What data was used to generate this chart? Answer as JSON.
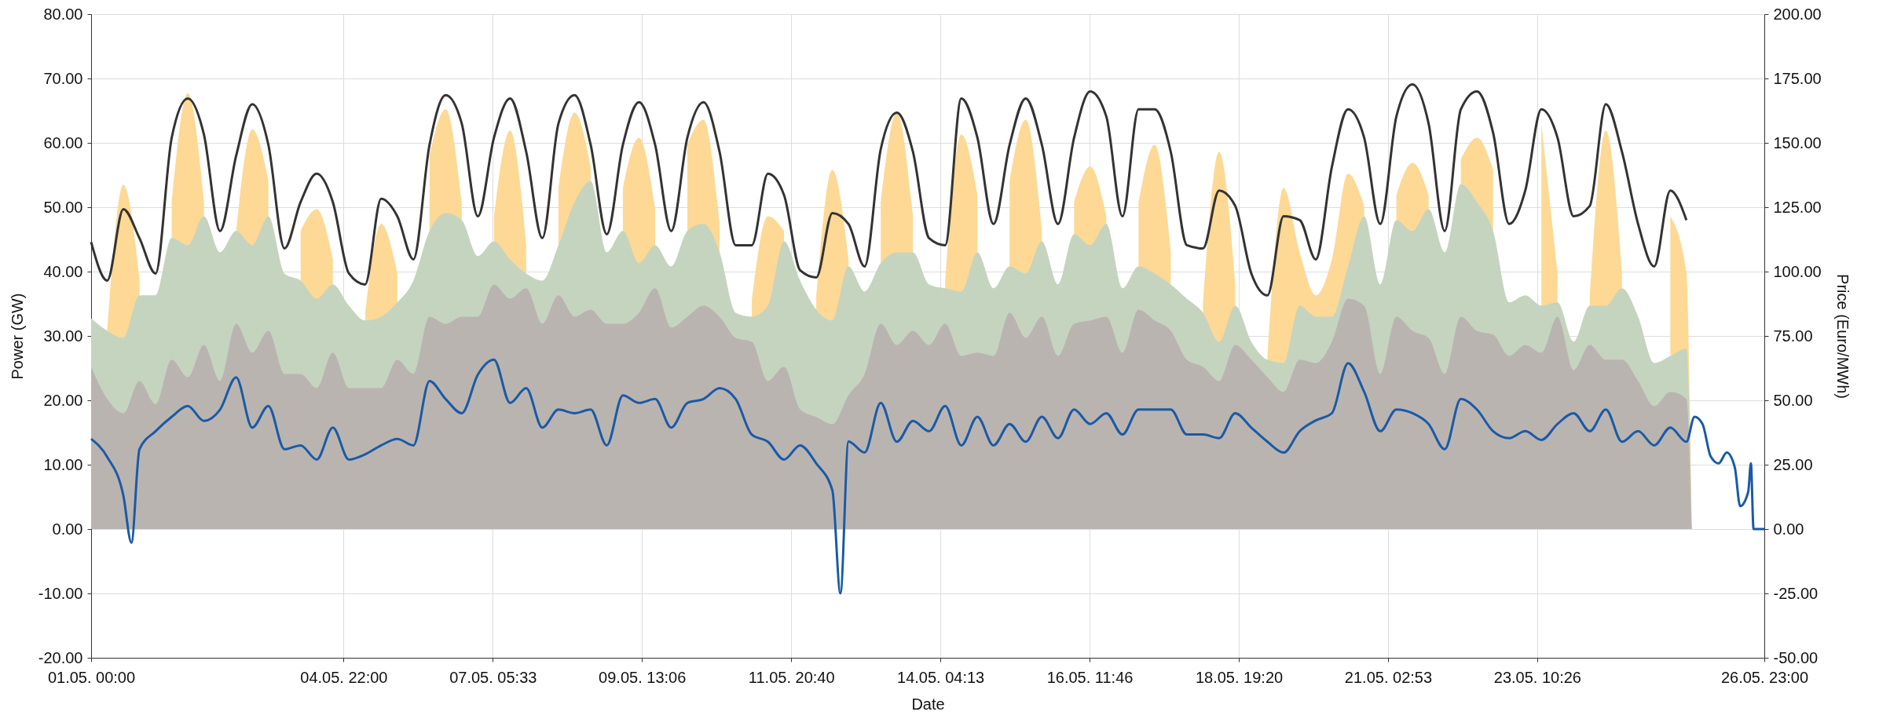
{
  "chart_data": {
    "type": "area",
    "xlabel": "Date",
    "ylabel": "Power (GW)",
    "y2label": "Price (Euro/MWh)",
    "grid": true,
    "xlim": [
      "--05-01T00:00",
      "--05-26T23:00"
    ],
    "xticks": [
      {
        "value": "--05-01T00:00",
        "label": "01.05. 00:00"
      },
      {
        "value": "--05-04T22:00",
        "label": "04.05. 22:00"
      },
      {
        "value": "--05-07T05:33",
        "label": "07.05. 05:33"
      },
      {
        "value": "--05-09T13:06",
        "label": "09.05. 13:06"
      },
      {
        "value": "--05-11T20:40",
        "label": "11.05. 20:40"
      },
      {
        "value": "--05-14T04:13",
        "label": "14.05. 04:13"
      },
      {
        "value": "--05-16T11:46",
        "label": "16.05. 11:46"
      },
      {
        "value": "--05-18T19:20",
        "label": "18.05. 19:20"
      },
      {
        "value": "--05-21T02:53",
        "label": "21.05. 02:53"
      },
      {
        "value": "--05-23T10:26",
        "label": "23.05. 10:26"
      },
      {
        "value": "--05-26T23:00",
        "label": "26.05. 23:00"
      }
    ],
    "ylim": [
      -20,
      80
    ],
    "yticks": [
      {
        "value": -20,
        "label": "-20.00"
      },
      {
        "value": -10,
        "label": "-10.00"
      },
      {
        "value": 0,
        "label": "0.00"
      },
      {
        "value": 10,
        "label": "10.00"
      },
      {
        "value": 20,
        "label": "20.00"
      },
      {
        "value": 30,
        "label": "30.00"
      },
      {
        "value": 40,
        "label": "40.00"
      },
      {
        "value": 50,
        "label": "50.00"
      },
      {
        "value": 60,
        "label": "60.00"
      },
      {
        "value": 70,
        "label": "70.00"
      },
      {
        "value": 80,
        "label": "80.00"
      }
    ],
    "y2lim": [
      -50,
      200
    ],
    "y2ticks": [
      {
        "value": -50,
        "label": "-50.00"
      },
      {
        "value": -25,
        "label": "-25.00"
      },
      {
        "value": 0,
        "label": "0.00"
      },
      {
        "value": 25,
        "label": "25.00"
      },
      {
        "value": 50,
        "label": "50.00"
      },
      {
        "value": 75,
        "label": "75.00"
      },
      {
        "value": 100,
        "label": "100.00"
      },
      {
        "value": 125,
        "label": "125.00"
      },
      {
        "value": 150,
        "label": "150.00"
      },
      {
        "value": 175,
        "label": "175.00"
      },
      {
        "value": 200,
        "label": "200.00"
      }
    ],
    "x": [
      "--05-01T00:00",
      "--05-01T06:00",
      "--05-01T12:00",
      "--05-01T18:00",
      "--05-02T00:00",
      "--05-02T06:00",
      "--05-02T12:00",
      "--05-02T18:00",
      "--05-03T00:00",
      "--05-03T06:00",
      "--05-03T12:00",
      "--05-03T18:00",
      "--05-04T00:00",
      "--05-04T06:00",
      "--05-04T12:00",
      "--05-04T18:00",
      "--05-05T00:00",
      "--05-05T06:00",
      "--05-05T12:00",
      "--05-05T18:00",
      "--05-06T00:00",
      "--05-06T06:00",
      "--05-06T12:00",
      "--05-06T18:00",
      "--05-07T00:00",
      "--05-07T06:00",
      "--05-07T12:00",
      "--05-07T18:00",
      "--05-08T00:00",
      "--05-08T06:00",
      "--05-08T12:00",
      "--05-08T18:00",
      "--05-09T00:00",
      "--05-09T06:00",
      "--05-09T12:00",
      "--05-09T18:00",
      "--05-10T00:00",
      "--05-10T06:00",
      "--05-10T12:00",
      "--05-10T18:00",
      "--05-11T00:00",
      "--05-11T06:00",
      "--05-11T12:00",
      "--05-11T18:00",
      "--05-12T00:00",
      "--05-12T06:00",
      "--05-12T12:00",
      "--05-12T18:00",
      "--05-13T00:00",
      "--05-13T06:00",
      "--05-13T12:00",
      "--05-13T18:00",
      "--05-14T00:00",
      "--05-14T06:00",
      "--05-14T12:00",
      "--05-14T18:00",
      "--05-15T00:00",
      "--05-15T06:00",
      "--05-15T12:00",
      "--05-15T18:00",
      "--05-16T00:00",
      "--05-16T06:00",
      "--05-16T12:00",
      "--05-16T18:00",
      "--05-17T00:00",
      "--05-17T06:00",
      "--05-17T12:00",
      "--05-17T18:00",
      "--05-18T00:00",
      "--05-18T06:00",
      "--05-18T12:00",
      "--05-18T18:00",
      "--05-19T00:00",
      "--05-19T06:00",
      "--05-19T12:00",
      "--05-19T18:00",
      "--05-20T00:00",
      "--05-20T06:00",
      "--05-20T12:00",
      "--05-20T18:00",
      "--05-21T00:00",
      "--05-21T06:00",
      "--05-21T12:00",
      "--05-21T18:00",
      "--05-22T00:00",
      "--05-22T06:00",
      "--05-22T12:00",
      "--05-22T18:00",
      "--05-23T00:00",
      "--05-23T06:00",
      "--05-23T12:00",
      "--05-23T18:00",
      "--05-24T00:00",
      "--05-24T06:00",
      "--05-24T12:00",
      "--05-24T18:00",
      "--05-25T00:00",
      "--05-25T06:00",
      "--05-25T12:00",
      "--05-25T18:00",
      "--05-25T20:00"
    ],
    "series": [
      {
        "color": "#fdd995",
        "values": [
          null,
          31,
          53.5,
          39,
          null,
          50.8,
          67.7,
          50.8,
          null,
          46.3,
          62.1,
          54.1,
          null,
          46.3,
          49.7,
          41.9,
          null,
          33,
          47.4,
          39.7,
          null,
          58,
          65.2,
          50.8,
          null,
          48.6,
          61.9,
          44.1,
          null,
          53,
          64.7,
          56.3,
          null,
          53,
          60.8,
          49.7,
          null,
          59.7,
          63.6,
          47.4,
          null,
          35.2,
          48.6,
          46.3,
          null,
          36.3,
          55.8,
          41.9,
          null,
          50.8,
          64.7,
          48.6,
          null,
          38.6,
          61.3,
          51.9,
          null,
          54.1,
          63.6,
          46.3,
          null,
          50.8,
          56.3,
          48.6,
          null,
          50.8,
          59.7,
          43,
          null,
          35.2,
          58.6,
          38,
          null,
          26.9,
          53,
          43,
          36.3,
          41.9,
          55.2,
          50.2,
          null,
          51.9,
          56.9,
          51.9,
          null,
          57.4,
          60.8,
          55.8,
          null,
          null,
          63,
          39.7,
          null,
          36.3,
          61.9,
          39.7,
          null,
          null,
          48.6,
          39.7,
          0
        ]
      },
      {
        "color": "#c5d4bf",
        "values": [
          32.7,
          30.8,
          29.7,
          36.3,
          36.3,
          45.2,
          44.1,
          48.6,
          43,
          46.3,
          44.1,
          48.6,
          39.7,
          38.6,
          35.8,
          38,
          34.7,
          32.4,
          33,
          35.2,
          38.6,
          46.3,
          49.1,
          48,
          42.4,
          44.7,
          41.9,
          39.7,
          38.6,
          44.1,
          50.8,
          54.1,
          43,
          46.3,
          41.3,
          44.1,
          40.8,
          46.3,
          47.4,
          43,
          33.6,
          33,
          34.7,
          44.7,
          38.6,
          34.1,
          32.4,
          40.8,
          36.9,
          41.3,
          43,
          43,
          38,
          37.4,
          36.9,
          43,
          37.4,
          40.8,
          39.7,
          44.7,
          38,
          45.8,
          44.1,
          47.4,
          37.4,
          40.8,
          39.7,
          38,
          35.8,
          33.6,
          29.1,
          34.7,
          29.1,
          26.3,
          25.8,
          34.7,
          33,
          33,
          40.8,
          48.6,
          38,
          48,
          46.3,
          49.7,
          43,
          53.6,
          50.8,
          46.3,
          35.2,
          36.3,
          34.7,
          35.2,
          29.1,
          34.7,
          34.7,
          37.4,
          33,
          25.8,
          26.9,
          28,
          0
        ]
      },
      {
        "color": "#bab4b1",
        "values": [
          25.2,
          20.2,
          18,
          23,
          19.4,
          26.3,
          23.6,
          28.6,
          23,
          31.9,
          27.4,
          30.8,
          24.1,
          24.1,
          21.9,
          27.4,
          21.9,
          21.9,
          21.9,
          26.3,
          24.1,
          33,
          31.9,
          33,
          33,
          38,
          35.8,
          37.4,
          31.9,
          36.3,
          33,
          34.1,
          31.9,
          31.9,
          33.6,
          37.4,
          31.3,
          33,
          34.7,
          33,
          29.7,
          29.1,
          23,
          25.2,
          18.6,
          17.4,
          16.3,
          20.8,
          24.1,
          31.9,
          28.6,
          30.8,
          28.6,
          31.9,
          26.9,
          27.4,
          26.9,
          33.6,
          29.7,
          33,
          26.9,
          31.9,
          32.4,
          33,
          27.4,
          34.1,
          32.4,
          30.8,
          26.3,
          25.2,
          23,
          28.6,
          26.3,
          23.6,
          21.3,
          26.3,
          25.8,
          29.1,
          35.8,
          34.7,
          24.1,
          33,
          30.8,
          29.7,
          24.1,
          33,
          30.8,
          30.2,
          26.9,
          28.6,
          27.4,
          33,
          24.7,
          28.6,
          26.3,
          26.3,
          23,
          19.1,
          21.3,
          20.2,
          0
        ]
      },
      {
        "type": "line",
        "color": "#333333",
        "values": [
          44.6,
          38.6,
          49.7,
          45.2,
          39.7,
          60.8,
          66.9,
          61.3,
          46.3,
          58,
          66,
          59.7,
          43.6,
          50.8,
          55.2,
          50.8,
          39.7,
          38,
          51.3,
          48.6,
          41.9,
          59.7,
          67.4,
          63,
          48.6,
          60.8,
          66.9,
          58.6,
          45.2,
          63,
          67.4,
          59.7,
          45.8,
          59.7,
          66.3,
          59.7,
          46.3,
          60.8,
          66.3,
          58.6,
          44.1,
          44.1,
          55.2,
          51.9,
          40.2,
          39.1,
          49.1,
          47.4,
          40.8,
          59,
          64.7,
          58.6,
          45.2,
          44.1,
          66.9,
          60.8,
          47.4,
          59.7,
          66.9,
          59.7,
          47.4,
          60.8,
          68,
          64.1,
          48.6,
          65.2,
          65.2,
          58.6,
          44.1,
          43.6,
          52.6,
          50.2,
          39.7,
          36.3,
          48.6,
          48,
          41.9,
          56.3,
          65.2,
          60.8,
          47.4,
          64.1,
          69.1,
          63,
          46.3,
          65.2,
          68,
          61.6,
          47.4,
          52.6,
          65.2,
          60.8,
          48.6,
          50.2,
          66,
          58.6,
          47.4,
          40.8,
          52.6,
          48,
          null
        ]
      },
      {
        "type": "line",
        "axis": "y2",
        "color": "#1a5aa6",
        "x": [
          "--05-01T00:00",
          "--05-01T06:00",
          "--05-01T12:00",
          "--05-01T15:00",
          "--05-01T18:00",
          "--05-02T00:00",
          "--05-02T06:00",
          "--05-02T12:00",
          "--05-02T18:00",
          "--05-03T00:00",
          "--05-03T06:00",
          "--05-03T12:00",
          "--05-03T18:00",
          "--05-04T00:00",
          "--05-04T06:00",
          "--05-04T12:00",
          "--05-04T18:00",
          "--05-05T00:00",
          "--05-05T06:00",
          "--05-05T12:00",
          "--05-05T18:00",
          "--05-06T00:00",
          "--05-06T06:00",
          "--05-06T12:00",
          "--05-06T18:00",
          "--05-07T00:00",
          "--05-07T06:00",
          "--05-07T12:00",
          "--05-07T18:00",
          "--05-08T00:00",
          "--05-08T06:00",
          "--05-08T12:00",
          "--05-08T18:00",
          "--05-09T00:00",
          "--05-09T06:00",
          "--05-09T12:00",
          "--05-09T18:00",
          "--05-10T00:00",
          "--05-10T06:00",
          "--05-10T12:00",
          "--05-10T18:00",
          "--05-11T00:00",
          "--05-11T06:00",
          "--05-11T12:00",
          "--05-11T18:00",
          "--05-12T00:00",
          "--05-12T06:00",
          "--05-12T12:00",
          "--05-12T15:00",
          "--05-12T18:00",
          "--05-13T00:00",
          "--05-13T06:00",
          "--05-13T12:00",
          "--05-13T18:00",
          "--05-14T00:00",
          "--05-14T06:00",
          "--05-14T12:00",
          "--05-14T18:00",
          "--05-15T00:00",
          "--05-15T06:00",
          "--05-15T12:00",
          "--05-15T18:00",
          "--05-16T00:00",
          "--05-16T06:00",
          "--05-16T12:00",
          "--05-16T18:00",
          "--05-17T00:00",
          "--05-17T06:00",
          "--05-17T12:00",
          "--05-17T18:00",
          "--05-18T00:00",
          "--05-18T06:00",
          "--05-18T12:00",
          "--05-18T18:00",
          "--05-19T00:00",
          "--05-19T06:00",
          "--05-19T12:00",
          "--05-19T18:00",
          "--05-20T00:00",
          "--05-20T06:00",
          "--05-20T12:00",
          "--05-20T18:00",
          "--05-21T00:00",
          "--05-21T06:00",
          "--05-21T12:00",
          "--05-21T18:00",
          "--05-22T00:00",
          "--05-22T06:00",
          "--05-22T12:00",
          "--05-22T18:00",
          "--05-23T00:00",
          "--05-23T06:00",
          "--05-23T12:00",
          "--05-23T18:00",
          "--05-24T00:00",
          "--05-24T06:00",
          "--05-24T12:00",
          "--05-24T18:00",
          "--05-25T00:00",
          "--05-25T06:00",
          "--05-25T12:00",
          "--05-25T18:00",
          "--05-25T21:00",
          "--05-26T00:00",
          "--05-26T03:00",
          "--05-26T06:00",
          "--05-26T09:00",
          "--05-26T12:00",
          "--05-26T14:00",
          "--05-26T17:00",
          "--05-26T18:00",
          "--05-26T19:00",
          "--05-26T23:00"
        ],
        "values": [
          35,
          28,
          13,
          -5.3,
          31,
          38,
          43.6,
          47.8,
          42,
          46.4,
          58.9,
          39.4,
          47.8,
          31,
          32.5,
          27,
          39.4,
          27,
          29,
          32.5,
          35,
          32.5,
          57.5,
          50.5,
          45,
          60,
          65.8,
          49,
          54.7,
          39.4,
          46.4,
          45,
          46.4,
          32.5,
          51.9,
          49,
          50.5,
          39.4,
          49,
          50.5,
          54.7,
          50.5,
          36.7,
          33.9,
          27,
          32.5,
          25.5,
          15,
          -25,
          34,
          29.7,
          49,
          33.9,
          42,
          38,
          47.8,
          32.5,
          43.6,
          32.5,
          40.8,
          33.9,
          43.6,
          35.3,
          46.4,
          40.8,
          45,
          36.7,
          46.4,
          46.4,
          46.4,
          36.7,
          36.7,
          35.3,
          45,
          39.4,
          33.9,
          29.7,
          38,
          42.2,
          45,
          64.4,
          53.3,
          38,
          46.4,
          45,
          40.8,
          31,
          50.5,
          46.4,
          38,
          35.3,
          38,
          34.6,
          40.8,
          45,
          38,
          46.4,
          33.9,
          38,
          32.5,
          39.4,
          33.9,
          43.6,
          40.8,
          28.3,
          25.5,
          29.7,
          24,
          8.9,
          14.4,
          25.5,
          0,
          0
        ]
      }
    ]
  }
}
